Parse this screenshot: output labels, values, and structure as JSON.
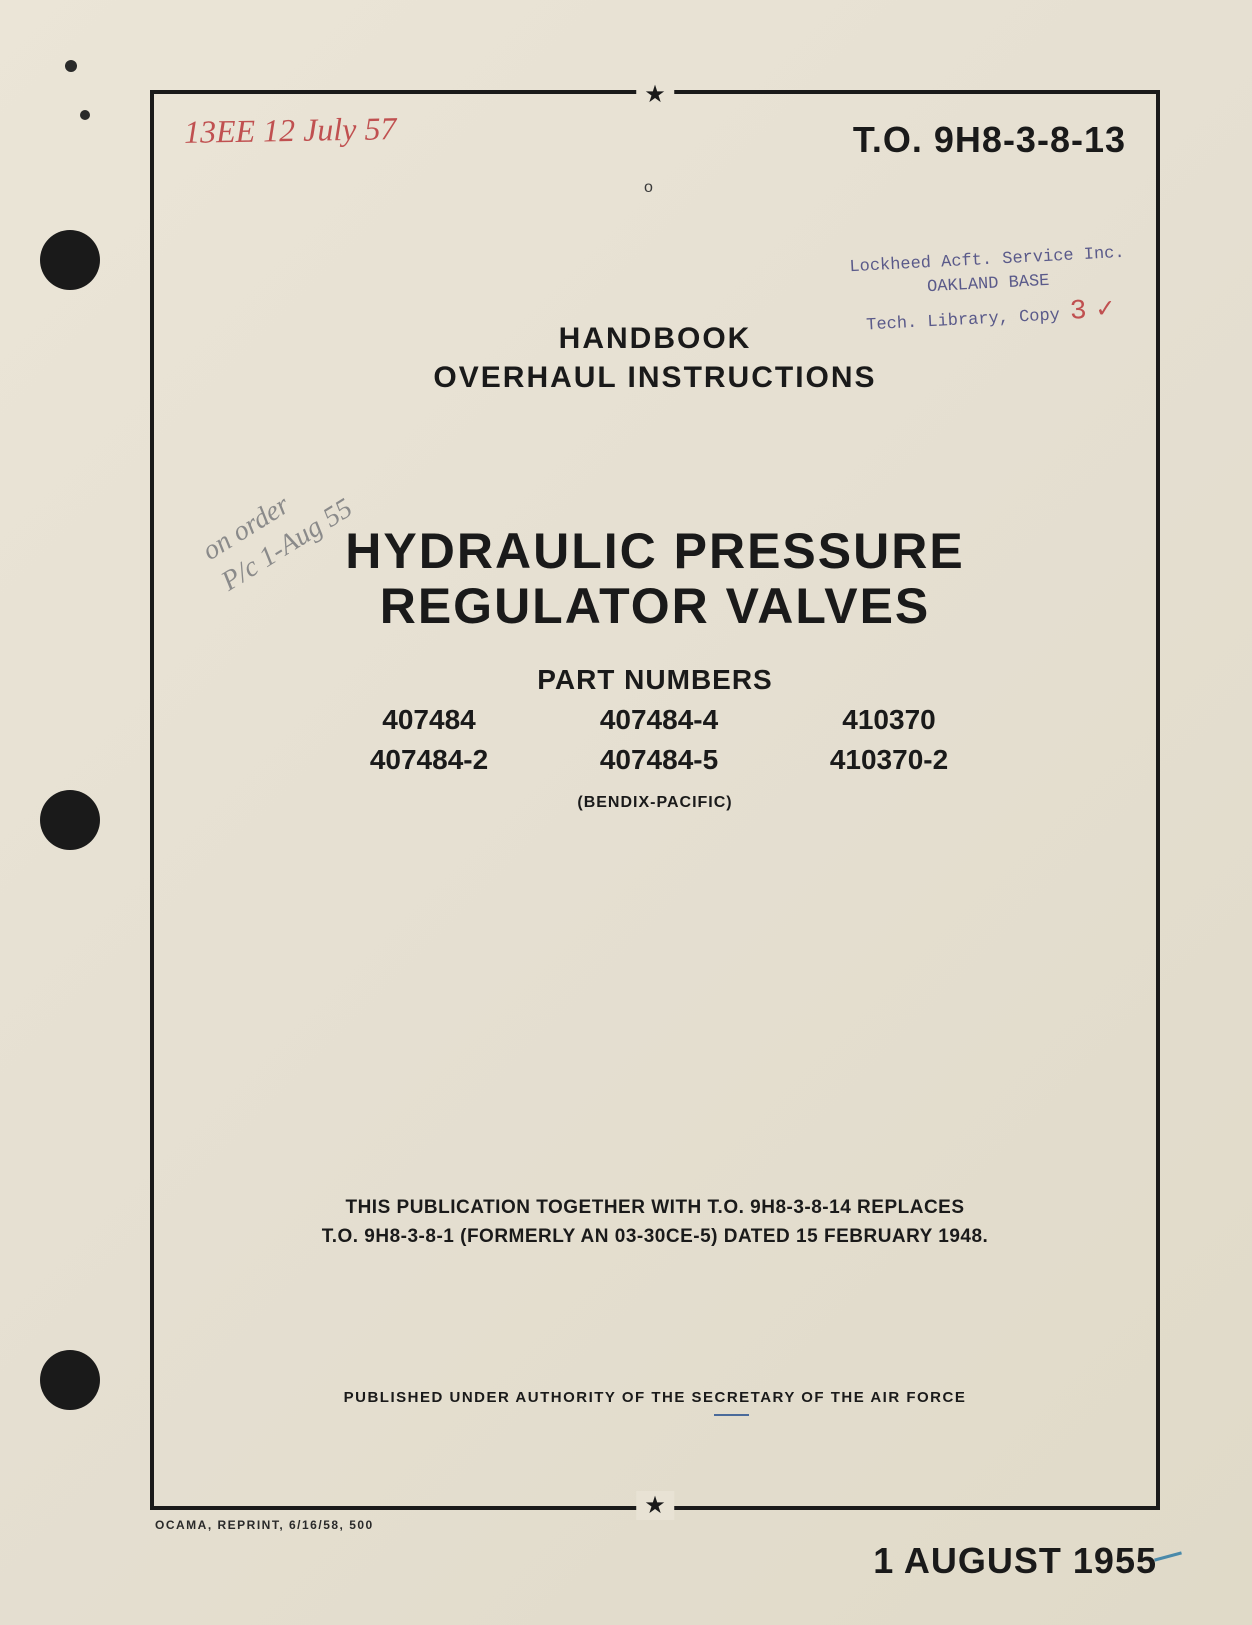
{
  "document": {
    "to_number": "T.O. 9H8-3-8-13",
    "handbook_line1": "HANDBOOK",
    "handbook_line2": "OVERHAUL INSTRUCTIONS",
    "main_title_line1": "HYDRAULIC PRESSURE",
    "main_title_line2": "REGULATOR VALVES",
    "part_numbers_label": "PART NUMBERS",
    "part_numbers": [
      "407484",
      "407484-4",
      "410370",
      "407484-2",
      "407484-5",
      "410370-2"
    ],
    "manufacturer": "(BENDIX-PACIFIC)",
    "replaces_line1": "THIS PUBLICATION TOGETHER WITH T.O. 9H8-3-8-14 REPLACES",
    "replaces_line2": "T.O. 9H8-3-8-1 (FORMERLY AN 03-30CE-5) DATED 15 FEBRUARY 1948.",
    "authority": "PUBLISHED UNDER AUTHORITY OF THE SECRETARY OF THE AIR FORCE",
    "reprint": "OCAMA, REPRINT, 6/16/58, 500",
    "date": "1 AUGUST 1955"
  },
  "handwritten": {
    "top": "13EE 12 July 57",
    "diagonal_line1": "on order",
    "diagonal_line2": "P/c 1-Aug 55"
  },
  "stamp": {
    "line1": "Lockheed Acft. Service Inc.",
    "line2": "OAKLAND BASE",
    "line3": "Tech. Library, Copy",
    "mark": "3"
  },
  "styling": {
    "page_bg": "#e8e2d4",
    "text_color": "#1a1a1a",
    "handwritten_color": "#c05050",
    "stamp_color": "#5a5a8a",
    "punch_hole_color": "#1a1a1a",
    "frame_border_width": 4,
    "main_title_fontsize": 50,
    "to_number_fontsize": 36,
    "date_fontsize": 36
  }
}
